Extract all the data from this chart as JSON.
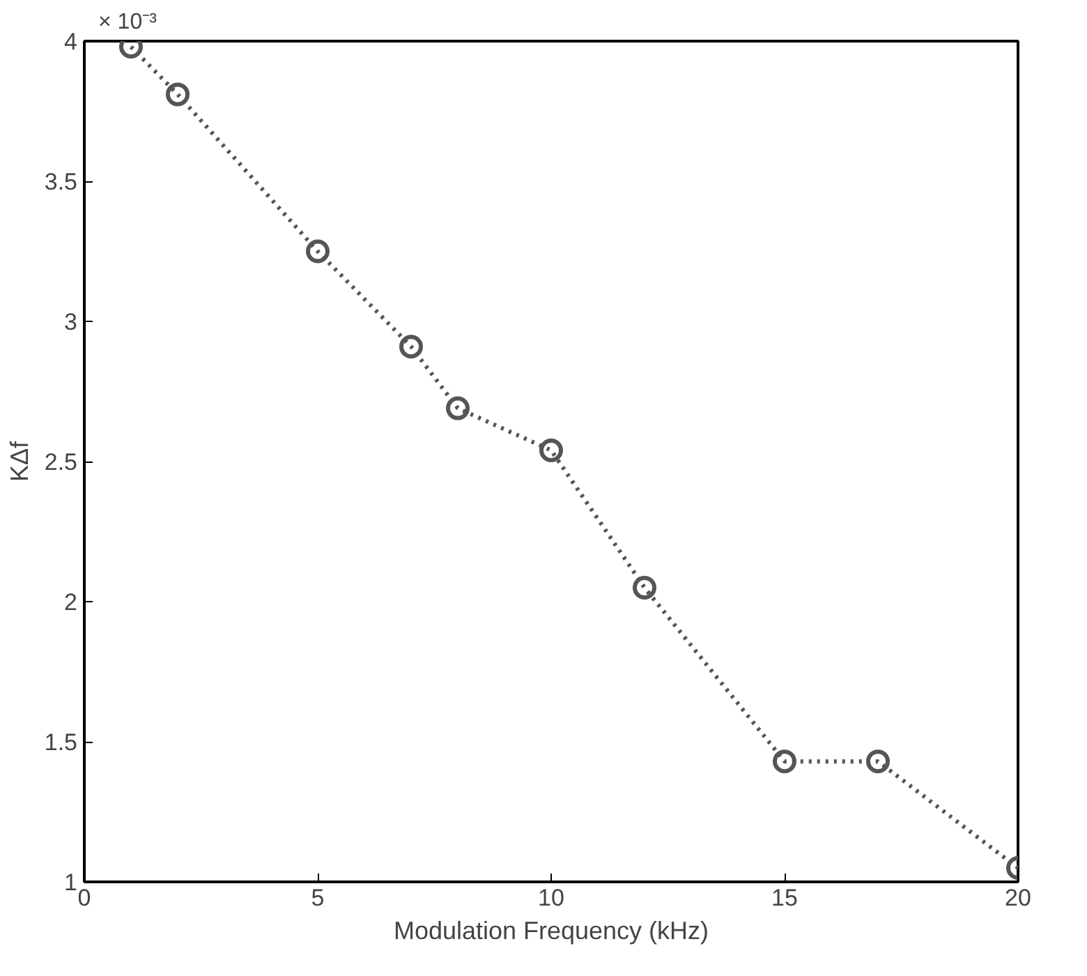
{
  "chart_data": {
    "type": "line",
    "xlabel": "Modulation Frequency (kHz)",
    "ylabel": "KΔf",
    "annotations": [
      "× 10⁻³"
    ],
    "x": [
      1,
      2,
      5,
      7,
      8,
      10,
      12,
      15,
      17,
      20
    ],
    "series": [
      {
        "color": "#555555",
        "values": [
          3.98,
          3.81,
          3.25,
          2.91,
          2.69,
          2.54,
          2.05,
          1.43,
          1.43,
          1.05
        ]
      }
    ],
    "xlim": [
      0,
      20
    ],
    "xticks": [
      0,
      5,
      10,
      15,
      20
    ],
    "ylim": [
      1,
      4
    ],
    "yticks": [
      1,
      1.5,
      2,
      2.5,
      3,
      3.5,
      4
    ],
    "marker": "circle",
    "line_style": "dotted",
    "grid": false
  }
}
